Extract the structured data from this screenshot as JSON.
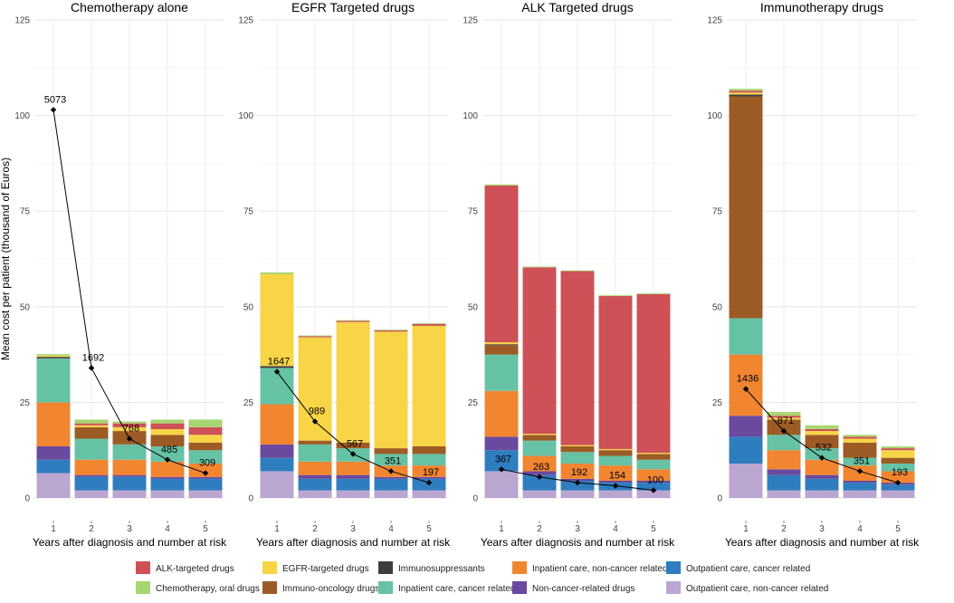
{
  "chart_data": {
    "type": "bar",
    "subtype": "stacked-bar-with-line",
    "ylabel": "Mean cost per patient (thousand of Euros)",
    "xlabel": "Years after diagnosis and number at risk",
    "ylim": [
      0,
      125
    ],
    "yticks": [
      0,
      25,
      50,
      75,
      100,
      125
    ],
    "categories": [
      "1",
      "2",
      "3",
      "4",
      "5"
    ],
    "series_order": [
      "Outpatient care, non-cancer related",
      "Outpatient care, cancer related",
      "Non-cancer-related drugs",
      "Inpatient care, non-cancer related",
      "Inpatient care, cancer related",
      "Immuno-oncology drugs",
      "Immunosuppressants",
      "EGFR-targeted drugs",
      "ALK-targeted drugs",
      "Chemotherapy, oral drugs"
    ],
    "colors": {
      "ALK-targeted drugs": "#CD5157",
      "EGFR-targeted drugs": "#F8D447",
      "Immunosuppressants": "#3E3E3E",
      "Inpatient care, non-cancer related": "#F28530",
      "Outpatient care, cancer related": "#2E7DBF",
      "Chemotherapy, oral drugs": "#A8D672",
      "Immuno-oncology drugs": "#9C5B25",
      "Inpatient care, cancer related": "#66C2A5",
      "Non-cancer-related drugs": "#6A4A9F",
      "Outpatient care, non-cancer related": "#BBA6D1"
    },
    "legend": [
      "ALK-targeted drugs",
      "EGFR-targeted drugs",
      "Immunosuppressants",
      "Inpatient care, non-cancer related",
      "Outpatient care, cancer related",
      "Chemotherapy, oral drugs",
      "Immuno-oncology drugs",
      "Inpatient care, cancer related",
      "Non-cancer-related drugs",
      "Outpatient care, non-cancer related"
    ],
    "panels": [
      {
        "title": "Chemotherapy alone",
        "number_at_risk": [
          "5073",
          "1692",
          "768",
          "485",
          "309"
        ],
        "risk_line_y": [
          101.5,
          34,
          15.5,
          10,
          6.5
        ],
        "bars": [
          {
            "Outpatient care, non-cancer related": 6.5,
            "Outpatient care, cancer related": 3.5,
            "Non-cancer-related drugs": 3.5,
            "Inpatient care, non-cancer related": 11.5,
            "Inpatient care, cancer related": 11.5,
            "Immuno-oncology drugs": 0,
            "Immunosuppressants": 0.4,
            "EGFR-targeted drugs": 0.3,
            "ALK-targeted drugs": 0,
            "Chemotherapy, oral drugs": 0.4
          },
          {
            "Outpatient care, non-cancer related": 2,
            "Outpatient care, cancer related": 3.5,
            "Non-cancer-related drugs": 0.5,
            "Inpatient care, non-cancer related": 4,
            "Inpatient care, cancer related": 5.5,
            "Immuno-oncology drugs": 3,
            "Immunosuppressants": 0,
            "EGFR-targeted drugs": 0.5,
            "ALK-targeted drugs": 0.5,
            "Chemotherapy, oral drugs": 1
          },
          {
            "Outpatient care, non-cancer related": 2,
            "Outpatient care, cancer related": 3.5,
            "Non-cancer-related drugs": 0.5,
            "Inpatient care, non-cancer related": 4,
            "Inpatient care, cancer related": 4,
            "Immuno-oncology drugs": 3.5,
            "Immunosuppressants": 0,
            "EGFR-targeted drugs": 1,
            "ALK-targeted drugs": 1,
            "Chemotherapy, oral drugs": 0.5
          },
          {
            "Outpatient care, non-cancer related": 2,
            "Outpatient care, cancer related": 3,
            "Non-cancer-related drugs": 0.5,
            "Inpatient care, non-cancer related": 4,
            "Inpatient care, cancer related": 4,
            "Immuno-oncology drugs": 3,
            "Immunosuppressants": 0,
            "EGFR-targeted drugs": 1.5,
            "ALK-targeted drugs": 1.5,
            "Chemotherapy, oral drugs": 1
          },
          {
            "Outpatient care, non-cancer related": 2,
            "Outpatient care, cancer related": 3,
            "Non-cancer-related drugs": 0.5,
            "Inpatient care, non-cancer related": 3.5,
            "Inpatient care, cancer related": 3.5,
            "Immuno-oncology drugs": 2,
            "Immunosuppressants": 0,
            "EGFR-targeted drugs": 2,
            "ALK-targeted drugs": 2,
            "Chemotherapy, oral drugs": 2
          }
        ]
      },
      {
        "title": "EGFR Targeted drugs",
        "number_at_risk": [
          "1647",
          "989",
          "567",
          "351",
          "197"
        ],
        "risk_line_y": [
          33,
          20,
          11.5,
          7,
          4
        ],
        "bars": [
          {
            "Outpatient care, non-cancer related": 7,
            "Outpatient care, cancer related": 3.5,
            "Non-cancer-related drugs": 3.5,
            "Inpatient care, non-cancer related": 10.5,
            "Inpatient care, cancer related": 9.5,
            "Immuno-oncology drugs": 0,
            "Immunosuppressants": 0.5,
            "EGFR-targeted drugs": 24,
            "ALK-targeted drugs": 0,
            "Chemotherapy, oral drugs": 0.5
          },
          {
            "Outpatient care, non-cancer related": 2,
            "Outpatient care, cancer related": 3,
            "Non-cancer-related drugs": 1,
            "Inpatient care, non-cancer related": 3.5,
            "Inpatient care, cancer related": 4.5,
            "Immuno-oncology drugs": 1,
            "Immunosuppressants": 0,
            "EGFR-targeted drugs": 27,
            "ALK-targeted drugs": 0.3,
            "Chemotherapy, oral drugs": 0.2
          },
          {
            "Outpatient care, non-cancer related": 2,
            "Outpatient care, cancer related": 3,
            "Non-cancer-related drugs": 1,
            "Inpatient care, non-cancer related": 3.5,
            "Inpatient care, cancer related": 3.5,
            "Immuno-oncology drugs": 1.5,
            "Immunosuppressants": 0,
            "EGFR-targeted drugs": 31.5,
            "ALK-targeted drugs": 0.3,
            "Chemotherapy, oral drugs": 0.2
          },
          {
            "Outpatient care, non-cancer related": 2,
            "Outpatient care, cancer related": 3,
            "Non-cancer-related drugs": 0.5,
            "Inpatient care, non-cancer related": 3,
            "Inpatient care, cancer related": 3,
            "Immuno-oncology drugs": 1.5,
            "Immunosuppressants": 0,
            "EGFR-targeted drugs": 30.5,
            "ALK-targeted drugs": 0.3,
            "Chemotherapy, oral drugs": 0.2
          },
          {
            "Outpatient care, non-cancer related": 2,
            "Outpatient care, cancer related": 3,
            "Non-cancer-related drugs": 0.5,
            "Inpatient care, non-cancer related": 3,
            "Inpatient care, cancer related": 3,
            "Immuno-oncology drugs": 2,
            "Immunosuppressants": 0,
            "EGFR-targeted drugs": 31.5,
            "ALK-targeted drugs": 0.5,
            "Chemotherapy, oral drugs": 0.2
          }
        ]
      },
      {
        "title": "ALK Targeted drugs",
        "number_at_risk": [
          "367",
          "263",
          "192",
          "154",
          "100"
        ],
        "risk_line_y": [
          7.5,
          5.5,
          4,
          3.2,
          2
        ],
        "bars": [
          {
            "Outpatient care, non-cancer related": 7,
            "Outpatient care, cancer related": 5.5,
            "Non-cancer-related drugs": 3.5,
            "Inpatient care, non-cancer related": 12,
            "Inpatient care, cancer related": 9.5,
            "Immuno-oncology drugs": 2.5,
            "Immunosuppressants": 0.2,
            "EGFR-targeted drugs": 0.5,
            "ALK-targeted drugs": 41,
            "Chemotherapy, oral drugs": 0.3
          },
          {
            "Outpatient care, non-cancer related": 2,
            "Outpatient care, cancer related": 4,
            "Non-cancer-related drugs": 1,
            "Inpatient care, non-cancer related": 4,
            "Inpatient care, cancer related": 4,
            "Immuno-oncology drugs": 1.5,
            "Immunosuppressants": 0,
            "EGFR-targeted drugs": 0.3,
            "ALK-targeted drugs": 43.5,
            "Chemotherapy, oral drugs": 0.2
          },
          {
            "Outpatient care, non-cancer related": 2,
            "Outpatient care, cancer related": 2.5,
            "Non-cancer-related drugs": 0.5,
            "Inpatient care, non-cancer related": 4,
            "Inpatient care, cancer related": 3,
            "Immuno-oncology drugs": 1.5,
            "Immunosuppressants": 0,
            "EGFR-targeted drugs": 0.3,
            "ALK-targeted drugs": 45.5,
            "Chemotherapy, oral drugs": 0.2
          },
          {
            "Outpatient care, non-cancer related": 2,
            "Outpatient care, cancer related": 2,
            "Non-cancer-related drugs": 0.5,
            "Inpatient care, non-cancer related": 4,
            "Inpatient care, cancer related": 2.5,
            "Immuno-oncology drugs": 1.5,
            "Immunosuppressants": 0,
            "EGFR-targeted drugs": 0.3,
            "ALK-targeted drugs": 40,
            "Chemotherapy, oral drugs": 0.2
          },
          {
            "Outpatient care, non-cancer related": 2,
            "Outpatient care, cancer related": 2,
            "Non-cancer-related drugs": 0.5,
            "Inpatient care, non-cancer related": 3,
            "Inpatient care, cancer related": 2.5,
            "Immuno-oncology drugs": 1.5,
            "Immunosuppressants": 0,
            "EGFR-targeted drugs": 0.3,
            "ALK-targeted drugs": 41.5,
            "Chemotherapy, oral drugs": 0.2
          }
        ]
      },
      {
        "title": "Immunotherapy drugs",
        "number_at_risk": [
          "1436",
          "871",
          "532",
          "351",
          "193"
        ],
        "risk_line_y": [
          28.5,
          17.5,
          10.5,
          7,
          4
        ],
        "bars": [
          {
            "Outpatient care, non-cancer related": 9,
            "Outpatient care, cancer related": 7,
            "Non-cancer-related drugs": 5.5,
            "Inpatient care, non-cancer related": 16,
            "Inpatient care, cancer related": 9.5,
            "Immuno-oncology drugs": 58,
            "Immunosuppressants": 0.5,
            "EGFR-targeted drugs": 0.5,
            "ALK-targeted drugs": 0.5,
            "Chemotherapy, oral drugs": 0.5
          },
          {
            "Outpatient care, non-cancer related": 2,
            "Outpatient care, cancer related": 4,
            "Non-cancer-related drugs": 1.5,
            "Inpatient care, non-cancer related": 5,
            "Inpatient care, cancer related": 4,
            "Immuno-oncology drugs": 4,
            "Immunosuppressants": 0,
            "EGFR-targeted drugs": 0.5,
            "ALK-targeted drugs": 0.5,
            "Chemotherapy, oral drugs": 1
          },
          {
            "Outpatient care, non-cancer related": 2,
            "Outpatient care, cancer related": 3,
            "Non-cancer-related drugs": 1,
            "Inpatient care, non-cancer related": 4,
            "Inpatient care, cancer related": 3,
            "Immuno-oncology drugs": 3.5,
            "Immunosuppressants": 0,
            "EGFR-targeted drugs": 1,
            "ALK-targeted drugs": 0.5,
            "Chemotherapy, oral drugs": 1
          },
          {
            "Outpatient care, non-cancer related": 2,
            "Outpatient care, cancer related": 2,
            "Non-cancer-related drugs": 0.5,
            "Inpatient care, non-cancer related": 4,
            "Inpatient care, cancer related": 2,
            "Immuno-oncology drugs": 4,
            "Immunosuppressants": 0,
            "EGFR-targeted drugs": 1,
            "ALK-targeted drugs": 0.5,
            "Chemotherapy, oral drugs": 0.5
          },
          {
            "Outpatient care, non-cancer related": 2,
            "Outpatient care, cancer related": 1.5,
            "Non-cancer-related drugs": 0.5,
            "Inpatient care, non-cancer related": 3,
            "Inpatient care, cancer related": 2,
            "Immuno-oncology drugs": 1.5,
            "Immunosuppressants": 0,
            "EGFR-targeted drugs": 2,
            "ALK-targeted drugs": 0.5,
            "Chemotherapy, oral drugs": 0.5
          }
        ]
      }
    ]
  }
}
